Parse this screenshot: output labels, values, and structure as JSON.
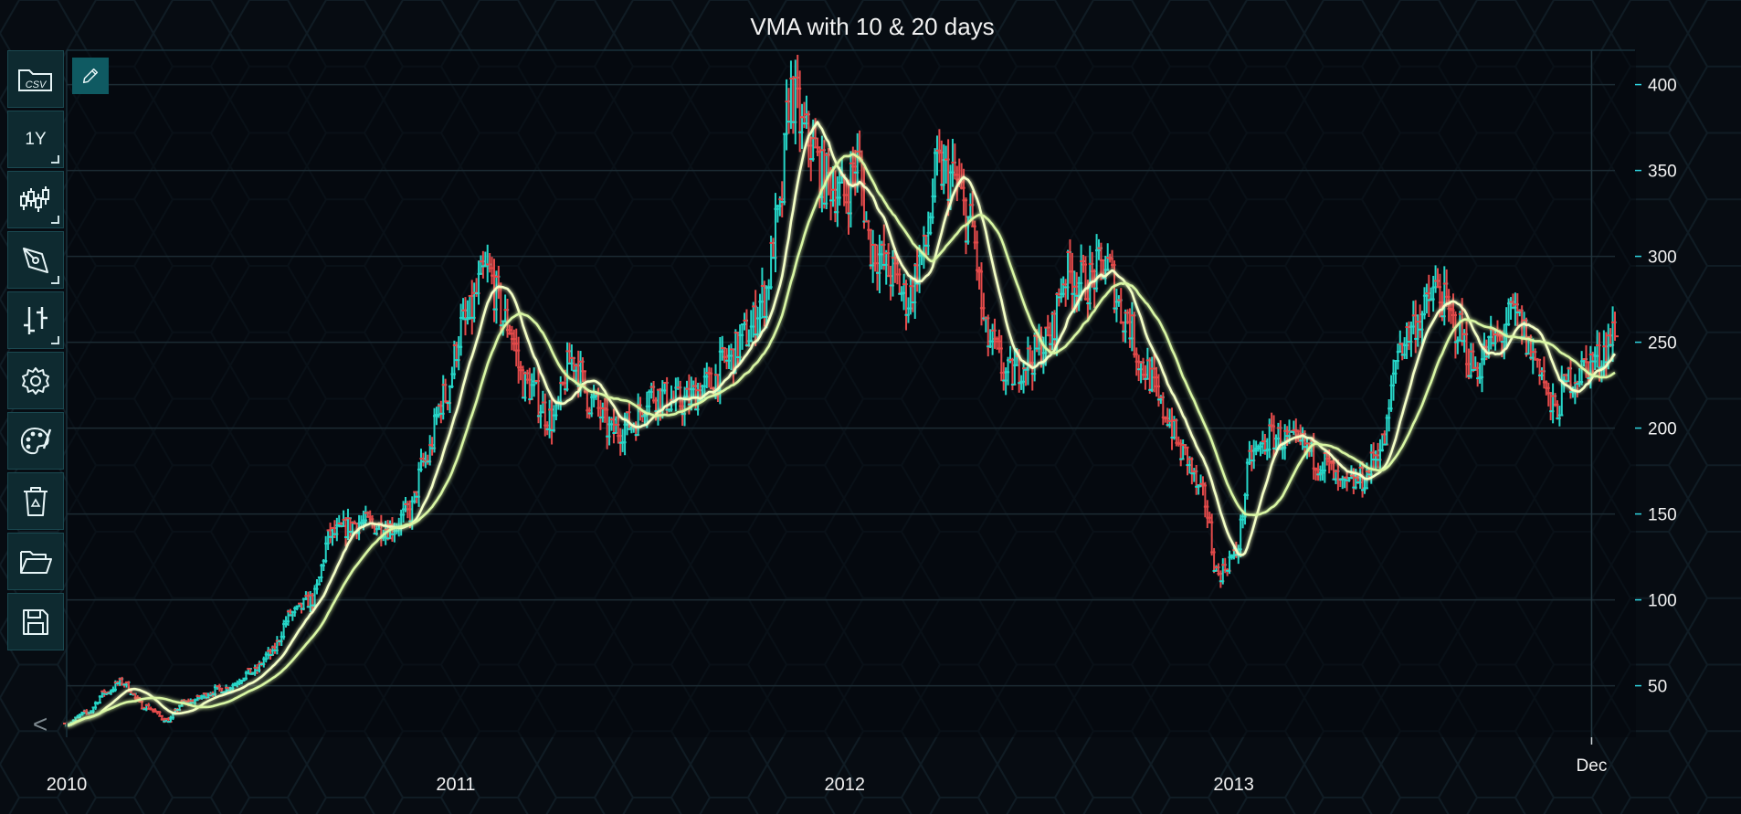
{
  "toolbar": {
    "items": [
      {
        "name": "load-csv",
        "icon": "folder-csv-icon",
        "label": "CSV"
      },
      {
        "name": "period",
        "icon": "",
        "label": "1Y"
      },
      {
        "name": "chart-type",
        "icon": "candlestick-icon",
        "label": ""
      },
      {
        "name": "drawing-tools",
        "icon": "pen-icon",
        "label": ""
      },
      {
        "name": "indicators",
        "icon": "ohlc-bars-icon",
        "label": ""
      },
      {
        "name": "settings",
        "icon": "gear-icon",
        "label": ""
      },
      {
        "name": "theme",
        "icon": "palette-icon",
        "label": ""
      },
      {
        "name": "clear",
        "icon": "recycle-bin-icon",
        "label": ""
      },
      {
        "name": "open",
        "icon": "open-folder-icon",
        "label": ""
      },
      {
        "name": "save",
        "icon": "floppy-disk-icon",
        "label": ""
      }
    ],
    "collapse_label": "<"
  },
  "colors": {
    "background": "#070c12",
    "up": "#26d6c8",
    "down": "#e34a4a",
    "vma10": "#f4ffc6",
    "vma20": "#d9f7a4",
    "axis": "#2fd3df",
    "grid": "#1c2b33",
    "text": "#f2f2f2"
  },
  "chart_data": {
    "type": "ohlc",
    "title": "VMA with 10 & 20 days",
    "x_ticks": [
      "2010",
      "2011",
      "2012",
      "2013"
    ],
    "x_end_label": "Dec",
    "y_ticks": [
      50,
      100,
      150,
      200,
      250,
      300,
      350,
      400
    ],
    "ylim": [
      20,
      420
    ],
    "xlim": [
      2010.0,
      2013.98
    ],
    "grid": true,
    "price_path": [
      [
        2010.0,
        28
      ],
      [
        2010.05,
        34
      ],
      [
        2010.1,
        46
      ],
      [
        2010.14,
        52
      ],
      [
        2010.2,
        38
      ],
      [
        2010.26,
        30
      ],
      [
        2010.3,
        40
      ],
      [
        2010.4,
        48
      ],
      [
        2010.48,
        58
      ],
      [
        2010.52,
        68
      ],
      [
        2010.58,
        92
      ],
      [
        2010.63,
        100
      ],
      [
        2010.68,
        138
      ],
      [
        2010.75,
        145
      ],
      [
        2010.83,
        142
      ],
      [
        2010.88,
        150
      ],
      [
        2010.92,
        180
      ],
      [
        2010.97,
        218
      ],
      [
        2011.02,
        260
      ],
      [
        2011.08,
        290
      ],
      [
        2011.13,
        262
      ],
      [
        2011.18,
        225
      ],
      [
        2011.25,
        205
      ],
      [
        2011.3,
        240
      ],
      [
        2011.35,
        215
      ],
      [
        2011.4,
        198
      ],
      [
        2011.45,
        202
      ],
      [
        2011.5,
        220
      ],
      [
        2011.58,
        215
      ],
      [
        2011.65,
        225
      ],
      [
        2011.7,
        240
      ],
      [
        2011.75,
        255
      ],
      [
        2011.79,
        275
      ],
      [
        2011.83,
        320
      ],
      [
        2011.86,
        395
      ],
      [
        2011.9,
        370
      ],
      [
        2011.95,
        345
      ],
      [
        2012.0,
        335
      ],
      [
        2012.03,
        355
      ],
      [
        2012.07,
        305
      ],
      [
        2012.12,
        290
      ],
      [
        2012.16,
        275
      ],
      [
        2012.2,
        300
      ],
      [
        2012.24,
        350
      ],
      [
        2012.28,
        345
      ],
      [
        2012.32,
        320
      ],
      [
        2012.37,
        250
      ],
      [
        2012.42,
        230
      ],
      [
        2012.47,
        240
      ],
      [
        2012.52,
        250
      ],
      [
        2012.57,
        290
      ],
      [
        2012.62,
        285
      ],
      [
        2012.67,
        295
      ],
      [
        2012.72,
        265
      ],
      [
        2012.77,
        235
      ],
      [
        2012.82,
        210
      ],
      [
        2012.87,
        185
      ],
      [
        2012.92,
        160
      ],
      [
        2012.96,
        115
      ],
      [
        2013.0,
        125
      ],
      [
        2013.05,
        185
      ],
      [
        2013.1,
        195
      ],
      [
        2013.17,
        190
      ],
      [
        2013.23,
        180
      ],
      [
        2013.28,
        165
      ],
      [
        2013.33,
        170
      ],
      [
        2013.38,
        190
      ],
      [
        2013.43,
        250
      ],
      [
        2013.48,
        265
      ],
      [
        2013.52,
        280
      ],
      [
        2013.57,
        260
      ],
      [
        2013.62,
        235
      ],
      [
        2013.67,
        250
      ],
      [
        2013.72,
        265
      ],
      [
        2013.78,
        240
      ],
      [
        2013.82,
        210
      ],
      [
        2013.87,
        230
      ],
      [
        2013.93,
        240
      ],
      [
        2013.98,
        255
      ]
    ],
    "series": [
      {
        "type": "ohlc"
      },
      {
        "type": "line",
        "window": 10
      },
      {
        "type": "line",
        "window": 20
      }
    ]
  }
}
